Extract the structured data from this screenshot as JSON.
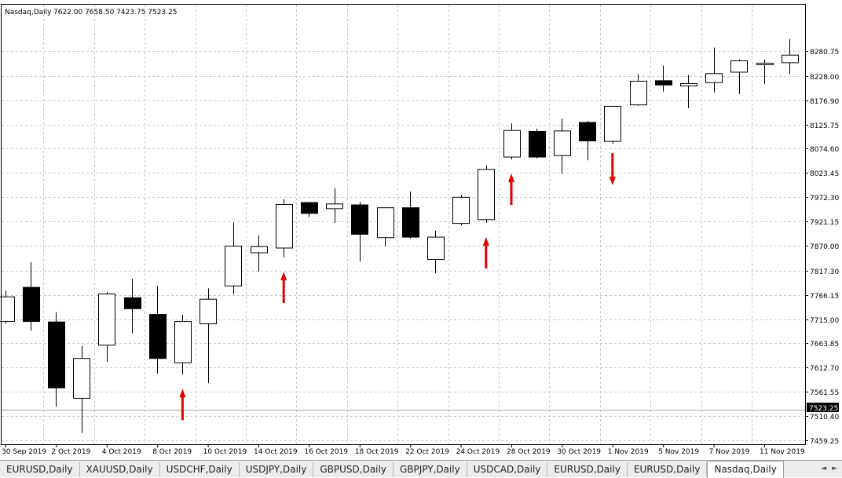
{
  "header": {
    "symbol": "Nasdaq,Daily",
    "ohlc": "7622.00 7658.50 7423.75 7523.25"
  },
  "price_label": "7523.25",
  "tabs": [
    {
      "label": "EURUSD,Daily",
      "active": false
    },
    {
      "label": "XAUUSD,Daily",
      "active": false
    },
    {
      "label": "USDCHF,Daily",
      "active": false
    },
    {
      "label": "USDJPY,Daily",
      "active": false
    },
    {
      "label": "GBPUSD,Daily",
      "active": false
    },
    {
      "label": "GBPJPY,Daily",
      "active": false
    },
    {
      "label": "USDCAD,Daily",
      "active": false
    },
    {
      "label": "EURUSD,Daily",
      "active": false
    },
    {
      "label": "EURUSD,Daily",
      "active": false
    },
    {
      "label": "Nasdaq,Daily",
      "active": true
    }
  ],
  "tab_nav": "◄ ►",
  "colors": {
    "bull_body": "#ffffff",
    "bear_body": "#000000",
    "grid": "#c8c8c8",
    "arrow": "#e00000",
    "price_line": "#a0a0a0",
    "price_label_bg": "#000000"
  },
  "chart_data": {
    "type": "candlestick",
    "ylim": [
      7459.25,
      8332.0
    ],
    "yticks": [
      "8280.75",
      "8228.00",
      "8176.90",
      "8125.75",
      "8074.60",
      "8023.45",
      "7972.30",
      "7921.15",
      "7870.00",
      "7817.30",
      "7766.15",
      "7715.00",
      "7663.85",
      "7612.70",
      "7561.55",
      "7510.40",
      "7459.25"
    ],
    "xtick_labels": [
      "30 Sep 2019",
      "2 Oct 2019",
      "4 Oct 2019",
      "8 Oct 2019",
      "10 Oct 2019",
      "14 Oct 2019",
      "16 Oct 2019",
      "18 Oct 2019",
      "22 Oct 2019",
      "24 Oct 2019",
      "28 Oct 2019",
      "30 Oct 2019",
      "1 Nov 2019",
      "5 Nov 2019",
      "7 Nov 2019",
      "11 Nov 2019"
    ],
    "current_price": 7523.25,
    "grid": true,
    "candles": [
      {
        "o": 7710,
        "h": 7775,
        "l": 7705,
        "c": 7762
      },
      {
        "o": 7782,
        "h": 7835,
        "l": 7690,
        "c": 7710
      },
      {
        "o": 7709,
        "h": 7730,
        "l": 7530,
        "c": 7570
      },
      {
        "o": 7548,
        "h": 7658,
        "l": 7475,
        "c": 7632
      },
      {
        "o": 7660,
        "h": 7772,
        "l": 7625,
        "c": 7768
      },
      {
        "o": 7760,
        "h": 7800,
        "l": 7685,
        "c": 7737
      },
      {
        "o": 7725,
        "h": 7785,
        "l": 7600,
        "c": 7632
      },
      {
        "o": 7623,
        "h": 7724,
        "l": 7598,
        "c": 7710
      },
      {
        "o": 7705,
        "h": 7780,
        "l": 7580,
        "c": 7757
      },
      {
        "o": 7785,
        "h": 7919,
        "l": 7768,
        "c": 7869
      },
      {
        "o": 7855,
        "h": 7892,
        "l": 7815,
        "c": 7868
      },
      {
        "o": 7865,
        "h": 7968,
        "l": 7845,
        "c": 7957
      },
      {
        "o": 7961,
        "h": 7962,
        "l": 7930,
        "c": 7938
      },
      {
        "o": 7948,
        "h": 7991,
        "l": 7918,
        "c": 7958
      },
      {
        "o": 7956,
        "h": 7962,
        "l": 7836,
        "c": 7894
      },
      {
        "o": 7887,
        "h": 7950,
        "l": 7868,
        "c": 7950
      },
      {
        "o": 7950,
        "h": 7984,
        "l": 7885,
        "c": 7888
      },
      {
        "o": 7841,
        "h": 7902,
        "l": 7812,
        "c": 7888
      },
      {
        "o": 7917,
        "h": 7977,
        "l": 7913,
        "c": 7972
      },
      {
        "o": 7925,
        "h": 8039,
        "l": 7918,
        "c": 8031
      },
      {
        "o": 8057,
        "h": 8128,
        "l": 8052,
        "c": 8113
      },
      {
        "o": 8111,
        "h": 8117,
        "l": 8054,
        "c": 8057
      },
      {
        "o": 8060,
        "h": 8138,
        "l": 8022,
        "c": 8112
      },
      {
        "o": 8130,
        "h": 8133,
        "l": 8050,
        "c": 8091
      },
      {
        "o": 8090,
        "h": 8164,
        "l": 8085,
        "c": 8164
      },
      {
        "o": 8167,
        "h": 8232,
        "l": 8165,
        "c": 8217
      },
      {
        "o": 8218,
        "h": 8250,
        "l": 8195,
        "c": 8209
      },
      {
        "o": 8207,
        "h": 8230,
        "l": 8160,
        "c": 8212
      },
      {
        "o": 8214,
        "h": 8288,
        "l": 8193,
        "c": 8233
      },
      {
        "o": 8236,
        "h": 8263,
        "l": 8190,
        "c": 8260
      },
      {
        "o": 8253,
        "h": 8263,
        "l": 8211,
        "c": 8255
      },
      {
        "o": 8256,
        "h": 8306,
        "l": 8232,
        "c": 8272
      }
    ],
    "annotations": [
      {
        "type": "up-arrow",
        "below_candle": 7
      },
      {
        "type": "up-arrow",
        "below_candle": 11
      },
      {
        "type": "up-arrow",
        "below_candle": 19
      },
      {
        "type": "up-arrow",
        "below_candle": 20
      },
      {
        "type": "down-arrow",
        "below_candle": 24
      }
    ]
  }
}
